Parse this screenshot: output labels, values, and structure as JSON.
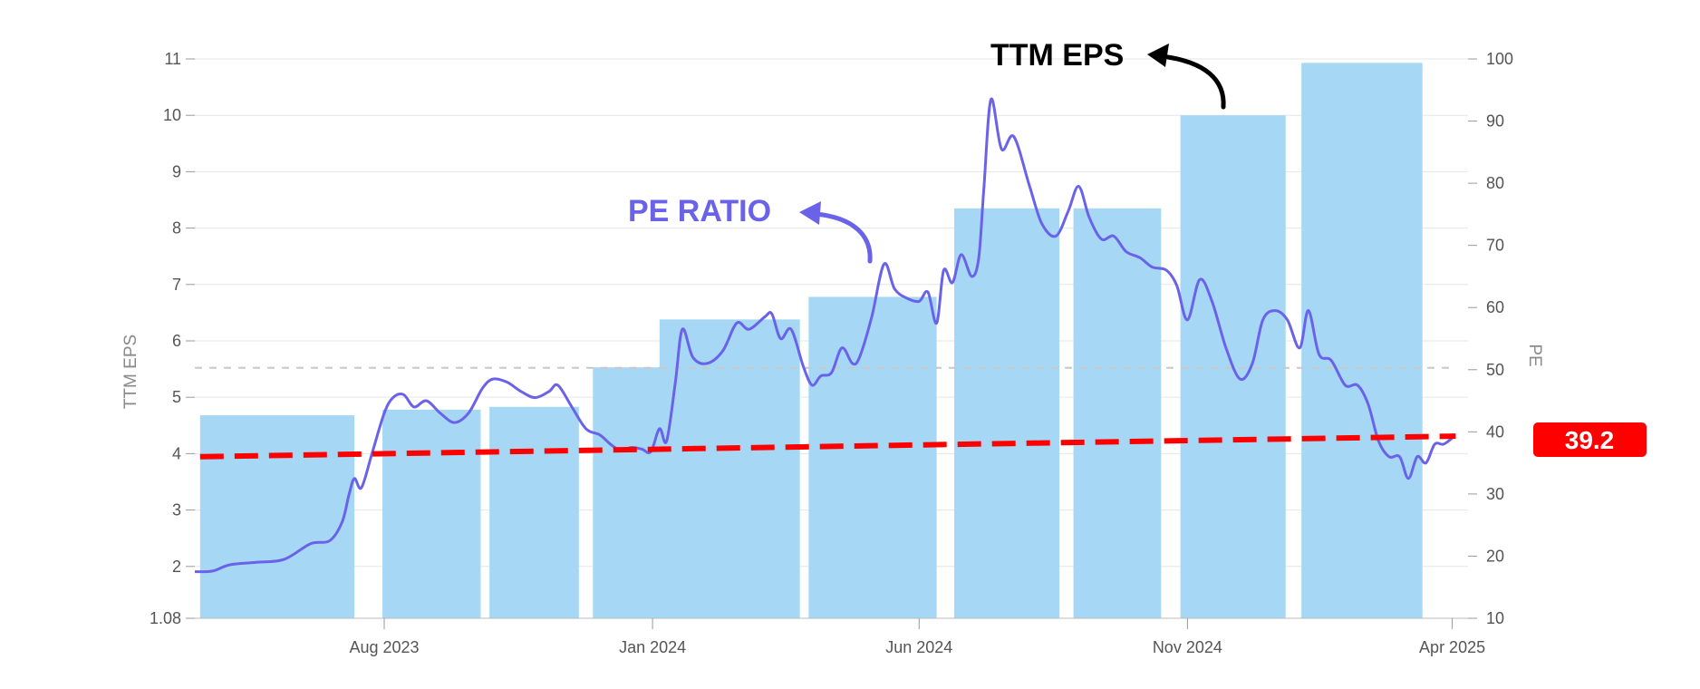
{
  "chart_data": {
    "type": "bar",
    "xaxis": {
      "tick_labels": [
        "Aug 2023",
        "Jan 2024",
        "Jun 2024",
        "Nov 2024",
        "Apr 2025"
      ],
      "tick_dates": [
        "2023-08-01",
        "2024-01-01",
        "2024-06-01",
        "2024-11-01",
        "2025-04-01"
      ],
      "range": [
        "2023-04-15",
        "2025-04-10"
      ]
    },
    "left_axis": {
      "label": "TTM EPS",
      "ticks": [
        "1.08",
        "2",
        "3",
        "4",
        "5",
        "6",
        "7",
        "8",
        "9",
        "10",
        "11"
      ],
      "range": [
        1.08,
        11
      ]
    },
    "right_axis": {
      "label": "PE",
      "ticks": [
        "10",
        "20",
        "30",
        "40",
        "50",
        "60",
        "70",
        "80",
        "90",
        "100"
      ],
      "range": [
        10,
        100
      ]
    },
    "grid": true,
    "series": [
      {
        "name": "TTM EPS",
        "kind": "bar",
        "axis": "left",
        "color": "#a6d8f5",
        "bars": [
          {
            "start": "2023-04-18",
            "end": "2023-07-15",
            "value": 4.68
          },
          {
            "start": "2023-07-31",
            "end": "2023-09-25",
            "value": 4.78
          },
          {
            "start": "2023-09-30",
            "end": "2023-11-20",
            "value": 4.83
          },
          {
            "start": "2023-11-28",
            "end": "2024-01-16",
            "value": 5.53
          },
          {
            "start": "2024-01-05",
            "end": "2024-03-25",
            "value": 6.38
          },
          {
            "start": "2024-03-30",
            "end": "2024-06-11",
            "value": 6.78
          },
          {
            "start": "2024-06-21",
            "end": "2024-08-20",
            "value": 8.35
          },
          {
            "start": "2024-08-28",
            "end": "2024-10-17",
            "value": 8.35
          },
          {
            "start": "2024-10-28",
            "end": "2024-12-27",
            "value": 10.0
          },
          {
            "start": "2025-01-05",
            "end": "2025-03-15",
            "value": 10.93
          }
        ]
      },
      {
        "name": "PE RATIO",
        "kind": "line",
        "axis": "right",
        "color": "#6a62e8",
        "points": [
          [
            "2023-04-15",
            17.5
          ],
          [
            "2023-04-25",
            17.6
          ],
          [
            "2023-05-05",
            18.6
          ],
          [
            "2023-05-20",
            19.0
          ],
          [
            "2023-06-05",
            19.5
          ],
          [
            "2023-06-20",
            22.0
          ],
          [
            "2023-07-01",
            22.5
          ],
          [
            "2023-07-08",
            25.5
          ],
          [
            "2023-07-12",
            30.0
          ],
          [
            "2023-07-15",
            32.5
          ],
          [
            "2023-07-19",
            31.0
          ],
          [
            "2023-07-25",
            36.5
          ],
          [
            "2023-08-01",
            43.0
          ],
          [
            "2023-08-06",
            45.5
          ],
          [
            "2023-08-12",
            46.0
          ],
          [
            "2023-08-18",
            44.0
          ],
          [
            "2023-08-25",
            45.0
          ],
          [
            "2023-09-02",
            43.0
          ],
          [
            "2023-09-10",
            41.5
          ],
          [
            "2023-09-18",
            43.0
          ],
          [
            "2023-09-26",
            47.0
          ],
          [
            "2023-10-02",
            48.5
          ],
          [
            "2023-10-10",
            48.0
          ],
          [
            "2023-10-18",
            46.5
          ],
          [
            "2023-10-26",
            45.5
          ],
          [
            "2023-11-03",
            46.5
          ],
          [
            "2023-11-08",
            47.5
          ],
          [
            "2023-11-16",
            44.0
          ],
          [
            "2023-11-24",
            40.5
          ],
          [
            "2023-12-02",
            39.5
          ],
          [
            "2023-12-08",
            38.0
          ],
          [
            "2023-12-14",
            37.0
          ],
          [
            "2023-12-20",
            37.5
          ],
          [
            "2023-12-26",
            37.2
          ],
          [
            "2023-12-31",
            36.8
          ],
          [
            "2024-01-05",
            40.5
          ],
          [
            "2024-01-09",
            38.5
          ],
          [
            "2024-01-14",
            48.0
          ],
          [
            "2024-01-18",
            56.5
          ],
          [
            "2024-01-24",
            52.0
          ],
          [
            "2024-02-01",
            51.0
          ],
          [
            "2024-02-10",
            53.0
          ],
          [
            "2024-02-18",
            57.5
          ],
          [
            "2024-02-25",
            56.5
          ],
          [
            "2024-03-05",
            58.5
          ],
          [
            "2024-03-09",
            59.0
          ],
          [
            "2024-03-14",
            55.0
          ],
          [
            "2024-03-20",
            56.5
          ],
          [
            "2024-03-27",
            50.5
          ],
          [
            "2024-04-01",
            47.5
          ],
          [
            "2024-04-06",
            49.0
          ],
          [
            "2024-04-12",
            49.5
          ],
          [
            "2024-04-18",
            53.5
          ],
          [
            "2024-04-24",
            51.0
          ],
          [
            "2024-04-28",
            52.0
          ],
          [
            "2024-05-05",
            58.5
          ],
          [
            "2024-05-12",
            67.0
          ],
          [
            "2024-05-18",
            63.0
          ],
          [
            "2024-05-25",
            61.5
          ],
          [
            "2024-06-01",
            61.0
          ],
          [
            "2024-06-06",
            62.5
          ],
          [
            "2024-06-11",
            57.5
          ],
          [
            "2024-06-15",
            66.0
          ],
          [
            "2024-06-20",
            64.0
          ],
          [
            "2024-06-25",
            68.5
          ],
          [
            "2024-07-01",
            65.0
          ],
          [
            "2024-07-05",
            68.0
          ],
          [
            "2024-07-08",
            79.5
          ],
          [
            "2024-07-12",
            93.5
          ],
          [
            "2024-07-18",
            85.5
          ],
          [
            "2024-07-25",
            87.5
          ],
          [
            "2024-08-03",
            79.5
          ],
          [
            "2024-08-10",
            73.5
          ],
          [
            "2024-08-18",
            71.5
          ],
          [
            "2024-08-25",
            75.5
          ],
          [
            "2024-08-31",
            79.5
          ],
          [
            "2024-09-06",
            74.5
          ],
          [
            "2024-09-13",
            71.0
          ],
          [
            "2024-09-20",
            71.5
          ],
          [
            "2024-09-27",
            69.0
          ],
          [
            "2024-10-05",
            68.0
          ],
          [
            "2024-10-12",
            66.5
          ],
          [
            "2024-10-20",
            66.0
          ],
          [
            "2024-10-26",
            63.5
          ],
          [
            "2024-11-01",
            58.0
          ],
          [
            "2024-11-08",
            64.5
          ],
          [
            "2024-11-15",
            61.0
          ],
          [
            "2024-11-23",
            53.5
          ],
          [
            "2024-12-01",
            48.5
          ],
          [
            "2024-12-08",
            51.0
          ],
          [
            "2024-12-14",
            58.0
          ],
          [
            "2024-12-21",
            59.5
          ],
          [
            "2024-12-28",
            58.0
          ],
          [
            "2025-01-04",
            53.5
          ],
          [
            "2025-01-09",
            59.5
          ],
          [
            "2025-01-15",
            52.5
          ],
          [
            "2025-01-22",
            51.5
          ],
          [
            "2025-01-30",
            47.5
          ],
          [
            "2025-02-06",
            47.5
          ],
          [
            "2025-02-12",
            44.5
          ],
          [
            "2025-02-18",
            38.5
          ],
          [
            "2025-02-24",
            36.0
          ],
          [
            "2025-03-02",
            36.0
          ],
          [
            "2025-03-07",
            32.5
          ],
          [
            "2025-03-12",
            36.0
          ],
          [
            "2025-03-17",
            35.0
          ],
          [
            "2025-03-22",
            38.0
          ],
          [
            "2025-03-27",
            38.0
          ],
          [
            "2025-04-01",
            39.0
          ]
        ]
      },
      {
        "name": "PE trend",
        "kind": "line",
        "style": "dashed",
        "axis": "right",
        "color": "#ff0000",
        "points": [
          [
            "2023-04-18",
            36.0
          ],
          [
            "2025-04-03",
            39.3
          ]
        ]
      },
      {
        "name": "PE reference",
        "kind": "line",
        "style": "dashed",
        "axis": "right",
        "color": "#c8c8c8",
        "points": [
          [
            "2023-04-15",
            50.3
          ],
          [
            "2025-04-03",
            50.3
          ]
        ]
      }
    ],
    "annotations": [
      {
        "text": "TTM EPS",
        "color": "#000000"
      },
      {
        "text": "PE RATIO",
        "color": "#6a62e8"
      }
    ],
    "badge": {
      "text": "39.2",
      "value": 39.2,
      "color": "#ff0000"
    }
  }
}
